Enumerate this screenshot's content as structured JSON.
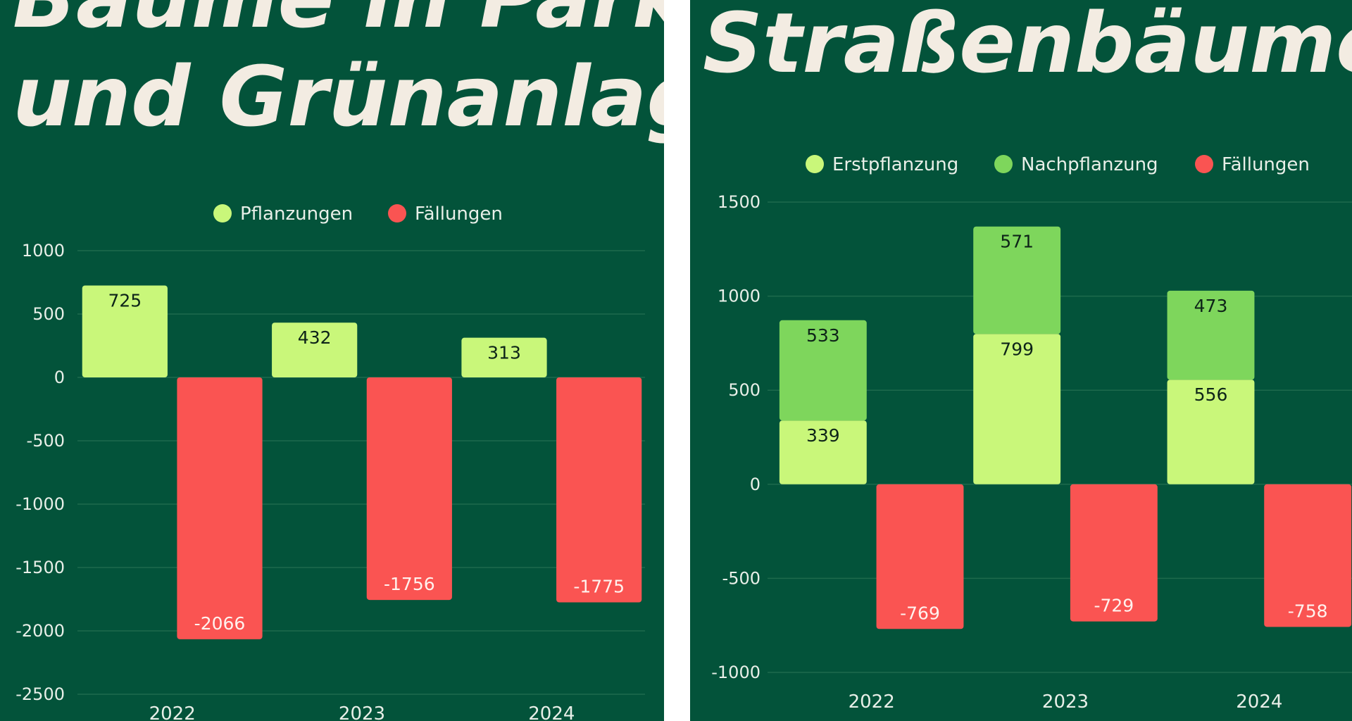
{
  "colors": {
    "background": "#03533a",
    "gridline": "#1e6a4c",
    "planting": "#c9f77a",
    "replanting": "#7ed65c",
    "felling": "#fa5452",
    "value_on_light": "#0d2418",
    "value_on_red": "#fff2ee",
    "text": "#e8efe8"
  },
  "chart_data": [
    {
      "type": "bar",
      "title": "Bäume in Parks und Grünanlagen",
      "title_lines": [
        "Bäume in Parks",
        "und Grünanlagen"
      ],
      "categories": [
        "2022",
        "2023",
        "2024"
      ],
      "series": [
        {
          "name": "Pflanzungen",
          "color_key": "planting",
          "values": [
            725,
            432,
            313
          ]
        },
        {
          "name": "Fällungen",
          "color_key": "felling",
          "values": [
            -2066,
            -1756,
            -1775
          ]
        }
      ],
      "ylim": [
        -2500,
        1000
      ],
      "yticks": [
        1000,
        500,
        0,
        -500,
        -1000,
        -1500,
        -2000,
        -2500
      ],
      "grid": true,
      "legend": "top-center",
      "xlabel": "",
      "ylabel": ""
    },
    {
      "type": "bar",
      "title": "Straßenbäume",
      "title_lines": [
        "Straßenbäume"
      ],
      "categories": [
        "2022",
        "2023",
        "2024"
      ],
      "series": [
        {
          "name": "Erstpflanzung",
          "color_key": "planting",
          "values": [
            339,
            799,
            556
          ],
          "stack": "positive"
        },
        {
          "name": "Nachpflanzung",
          "color_key": "replanting",
          "values": [
            533,
            571,
            473
          ],
          "stack": "positive"
        },
        {
          "name": "Fällungen",
          "color_key": "felling",
          "values": [
            -769,
            -729,
            -758
          ]
        }
      ],
      "ylim": [
        -1000,
        1500
      ],
      "yticks": [
        1500,
        1000,
        500,
        0,
        -500,
        -1000
      ],
      "grid": true,
      "legend": "top-center",
      "xlabel": "",
      "ylabel": ""
    }
  ]
}
